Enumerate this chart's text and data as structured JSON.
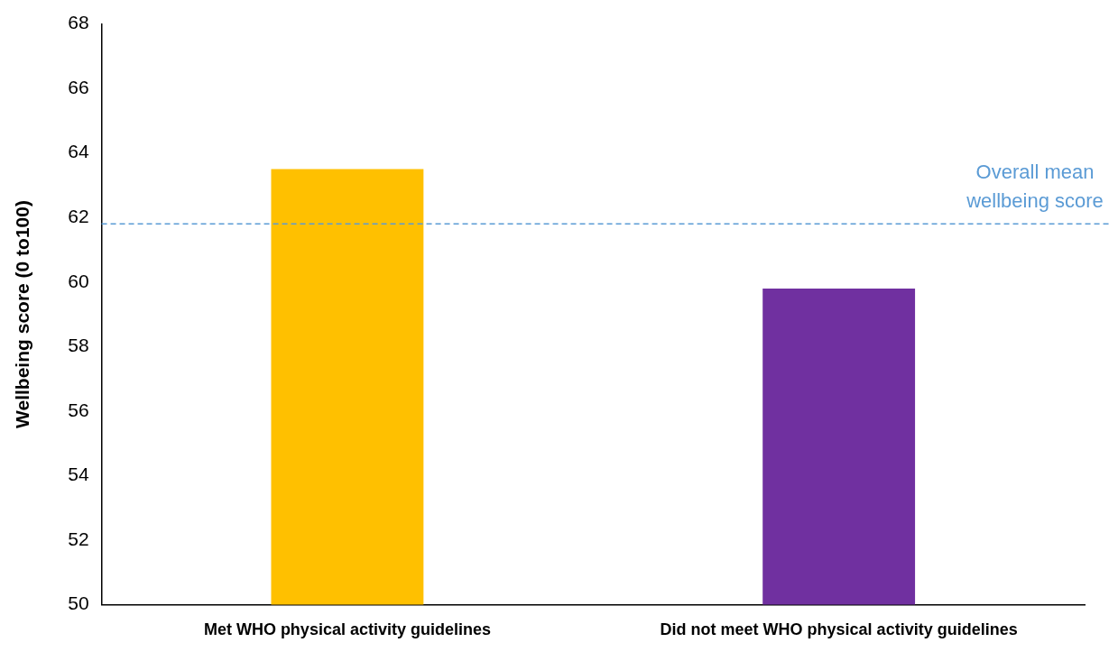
{
  "chart_data": {
    "type": "bar",
    "ylabel": "Wellbeing score (0 to100)",
    "categories": [
      "Met WHO physical activity guidelines",
      "Did not meet WHO physical activity guidelines"
    ],
    "values": [
      63.5,
      59.8
    ],
    "colors": [
      "#ffc000",
      "#7030a0"
    ],
    "ylim": [
      50,
      68
    ],
    "yticks": [
      50,
      52,
      54,
      56,
      58,
      60,
      62,
      64,
      66,
      68
    ],
    "grid": false,
    "legend": false,
    "ref_lines": [
      {
        "axis": "y",
        "value": 61.8,
        "label": "Overall mean wellbeing score",
        "color": "#5b9bd5",
        "line_style": "dashed"
      }
    ]
  }
}
